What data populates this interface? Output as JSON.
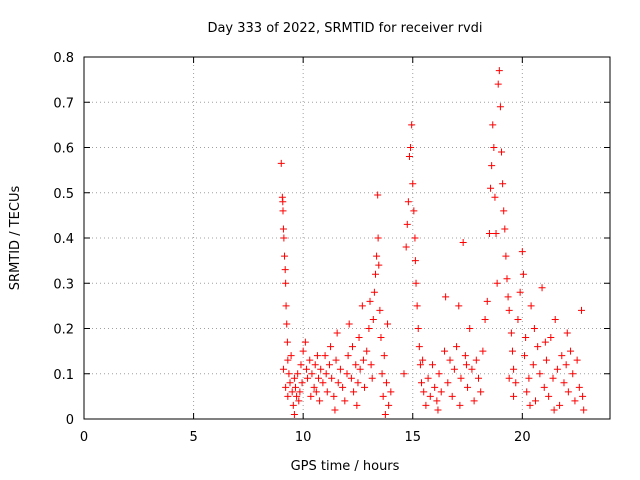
{
  "chart_data": {
    "type": "scatter",
    "title": "Day 333 of 2022, SRMTID for receiver rvdi",
    "xlabel": "GPS time / hours",
    "ylabel": "SRMTID / TECUs",
    "xlim": [
      0,
      24
    ],
    "ylim": [
      0,
      0.8
    ],
    "x_ticks": [
      0,
      5,
      10,
      15,
      20
    ],
    "x_tick_labels": [
      "0",
      "5",
      "10",
      "15",
      "20"
    ],
    "y_ticks": [
      0,
      0.1,
      0.2,
      0.3,
      0.4,
      0.5,
      0.6,
      0.7,
      0.8
    ],
    "y_tick_labels": [
      "0",
      "0.1",
      "0.2",
      "0.3",
      "0.4",
      "0.5",
      "0.6",
      "0.7",
      "0.8"
    ],
    "grid": true,
    "legend": "none",
    "marker": "+",
    "series": [
      {
        "name": "SRMTID",
        "color": "#ff0000",
        "marker": "+",
        "points": [
          [
            9.0,
            0.565
          ],
          [
            9.05,
            0.49
          ],
          [
            9.07,
            0.48
          ],
          [
            9.08,
            0.46
          ],
          [
            9.1,
            0.42
          ],
          [
            9.12,
            0.4
          ],
          [
            9.15,
            0.36
          ],
          [
            9.18,
            0.33
          ],
          [
            9.2,
            0.3
          ],
          [
            9.22,
            0.25
          ],
          [
            9.25,
            0.21
          ],
          [
            9.28,
            0.17
          ],
          [
            9.3,
            0.13
          ],
          [
            9.35,
            0.1
          ],
          [
            9.4,
            0.08
          ],
          [
            9.5,
            0.06
          ],
          [
            9.6,
            0.09
          ],
          [
            9.7,
            0.05
          ],
          [
            9.8,
            0.04
          ],
          [
            9.9,
            0.12
          ],
          [
            9.1,
            0.11
          ],
          [
            9.2,
            0.07
          ],
          [
            9.3,
            0.05
          ],
          [
            9.45,
            0.14
          ],
          [
            9.55,
            0.03
          ],
          [
            9.65,
            0.07
          ],
          [
            9.75,
            0.1
          ],
          [
            9.85,
            0.06
          ],
          [
            9.95,
            0.08
          ],
          [
            10.0,
            0.15
          ],
          [
            10.1,
            0.17
          ],
          [
            10.15,
            0.11
          ],
          [
            10.2,
            0.09
          ],
          [
            10.3,
            0.13
          ],
          [
            10.35,
            0.05
          ],
          [
            10.4,
            0.1
          ],
          [
            10.5,
            0.07
          ],
          [
            10.55,
            0.12
          ],
          [
            10.6,
            0.06
          ],
          [
            10.7,
            0.09
          ],
          [
            10.75,
            0.04
          ],
          [
            10.8,
            0.11
          ],
          [
            10.9,
            0.08
          ],
          [
            11.0,
            0.14
          ],
          [
            11.05,
            0.1
          ],
          [
            11.1,
            0.06
          ],
          [
            11.2,
            0.12
          ],
          [
            11.25,
            0.16
          ],
          [
            11.3,
            0.09
          ],
          [
            11.4,
            0.05
          ],
          [
            11.5,
            0.13
          ],
          [
            11.55,
            0.19
          ],
          [
            11.6,
            0.08
          ],
          [
            11.7,
            0.11
          ],
          [
            11.8,
            0.07
          ],
          [
            11.9,
            0.04
          ],
          [
            12.0,
            0.1
          ],
          [
            12.05,
            0.14
          ],
          [
            12.1,
            0.21
          ],
          [
            12.2,
            0.09
          ],
          [
            12.25,
            0.16
          ],
          [
            12.3,
            0.06
          ],
          [
            12.4,
            0.12
          ],
          [
            12.5,
            0.08
          ],
          [
            12.55,
            0.18
          ],
          [
            12.6,
            0.11
          ],
          [
            12.7,
            0.25
          ],
          [
            12.75,
            0.13
          ],
          [
            12.8,
            0.07
          ],
          [
            12.9,
            0.15
          ],
          [
            13.0,
            0.2
          ],
          [
            13.05,
            0.26
          ],
          [
            13.1,
            0.12
          ],
          [
            13.15,
            0.09
          ],
          [
            13.2,
            0.22
          ],
          [
            13.25,
            0.28
          ],
          [
            13.3,
            0.32
          ],
          [
            13.35,
            0.36
          ],
          [
            13.4,
            0.495
          ],
          [
            13.42,
            0.4
          ],
          [
            13.45,
            0.34
          ],
          [
            13.5,
            0.24
          ],
          [
            13.55,
            0.18
          ],
          [
            13.6,
            0.1
          ],
          [
            13.65,
            0.05
          ],
          [
            13.7,
            0.14
          ],
          [
            13.8,
            0.08
          ],
          [
            13.85,
            0.21
          ],
          [
            13.9,
            0.03
          ],
          [
            14.0,
            0.06
          ],
          [
            14.6,
            0.1
          ],
          [
            14.7,
            0.38
          ],
          [
            14.75,
            0.43
          ],
          [
            14.8,
            0.48
          ],
          [
            14.85,
            0.58
          ],
          [
            14.9,
            0.6
          ],
          [
            14.95,
            0.65
          ],
          [
            15.0,
            0.52
          ],
          [
            15.05,
            0.46
          ],
          [
            15.1,
            0.4
          ],
          [
            15.12,
            0.35
          ],
          [
            15.15,
            0.3
          ],
          [
            15.2,
            0.25
          ],
          [
            15.25,
            0.2
          ],
          [
            15.3,
            0.16
          ],
          [
            15.35,
            0.12
          ],
          [
            15.4,
            0.08
          ],
          [
            15.5,
            0.06
          ],
          [
            15.6,
            0.03
          ],
          [
            15.7,
            0.09
          ],
          [
            15.8,
            0.05
          ],
          [
            15.9,
            0.12
          ],
          [
            16.0,
            0.07
          ],
          [
            16.1,
            0.04
          ],
          [
            16.2,
            0.1
          ],
          [
            16.3,
            0.06
          ],
          [
            16.5,
            0.27
          ],
          [
            16.6,
            0.08
          ],
          [
            16.7,
            0.13
          ],
          [
            16.8,
            0.05
          ],
          [
            16.9,
            0.11
          ],
          [
            17.0,
            0.16
          ],
          [
            17.1,
            0.25
          ],
          [
            17.2,
            0.09
          ],
          [
            17.3,
            0.39
          ],
          [
            17.4,
            0.14
          ],
          [
            17.5,
            0.07
          ],
          [
            17.6,
            0.2
          ],
          [
            17.7,
            0.11
          ],
          [
            17.8,
            0.04
          ],
          [
            17.9,
            0.13
          ],
          [
            18.0,
            0.09
          ],
          [
            18.1,
            0.06
          ],
          [
            18.2,
            0.15
          ],
          [
            18.3,
            0.22
          ],
          [
            18.4,
            0.26
          ],
          [
            18.5,
            0.41
          ],
          [
            18.55,
            0.51
          ],
          [
            18.6,
            0.56
          ],
          [
            18.65,
            0.65
          ],
          [
            18.7,
            0.6
          ],
          [
            18.75,
            0.49
          ],
          [
            18.8,
            0.41
          ],
          [
            18.85,
            0.3
          ],
          [
            18.9,
            0.74
          ],
          [
            18.95,
            0.77
          ],
          [
            19.0,
            0.69
          ],
          [
            19.05,
            0.59
          ],
          [
            19.1,
            0.52
          ],
          [
            19.15,
            0.46
          ],
          [
            19.2,
            0.42
          ],
          [
            19.25,
            0.36
          ],
          [
            19.3,
            0.31
          ],
          [
            19.35,
            0.27
          ],
          [
            19.4,
            0.24
          ],
          [
            19.5,
            0.19
          ],
          [
            19.55,
            0.15
          ],
          [
            19.6,
            0.11
          ],
          [
            19.7,
            0.08
          ],
          [
            19.8,
            0.22
          ],
          [
            19.9,
            0.28
          ],
          [
            20.0,
            0.37
          ],
          [
            20.05,
            0.32
          ],
          [
            20.1,
            0.14
          ],
          [
            20.2,
            0.06
          ],
          [
            20.3,
            0.09
          ],
          [
            20.4,
            0.25
          ],
          [
            20.5,
            0.12
          ],
          [
            20.6,
            0.04
          ],
          [
            20.7,
            0.16
          ],
          [
            20.8,
            0.1
          ],
          [
            20.9,
            0.29
          ],
          [
            21.0,
            0.07
          ],
          [
            21.1,
            0.13
          ],
          [
            21.2,
            0.05
          ],
          [
            21.3,
            0.18
          ],
          [
            21.4,
            0.09
          ],
          [
            21.5,
            0.22
          ],
          [
            21.6,
            0.11
          ],
          [
            21.7,
            0.03
          ],
          [
            21.8,
            0.14
          ],
          [
            21.9,
            0.08
          ],
          [
            22.0,
            0.12
          ],
          [
            22.1,
            0.06
          ],
          [
            22.2,
            0.15
          ],
          [
            22.3,
            0.1
          ],
          [
            22.4,
            0.04
          ],
          [
            22.5,
            0.13
          ],
          [
            22.6,
            0.07
          ],
          [
            22.7,
            0.24
          ],
          [
            22.75,
            0.05
          ],
          [
            22.8,
            0.02
          ],
          [
            19.4,
            0.09
          ],
          [
            19.6,
            0.05
          ],
          [
            20.15,
            0.18
          ],
          [
            20.35,
            0.03
          ],
          [
            20.55,
            0.2
          ],
          [
            21.05,
            0.17
          ],
          [
            21.45,
            0.02
          ],
          [
            22.05,
            0.19
          ],
          [
            17.15,
            0.03
          ],
          [
            17.45,
            0.12
          ],
          [
            16.45,
            0.15
          ],
          [
            16.15,
            0.02
          ],
          [
            15.45,
            0.13
          ],
          [
            10.65,
            0.14
          ],
          [
            11.45,
            0.02
          ],
          [
            12.45,
            0.03
          ],
          [
            13.75,
            0.01
          ],
          [
            9.6,
            0.01
          ]
        ]
      }
    ]
  }
}
